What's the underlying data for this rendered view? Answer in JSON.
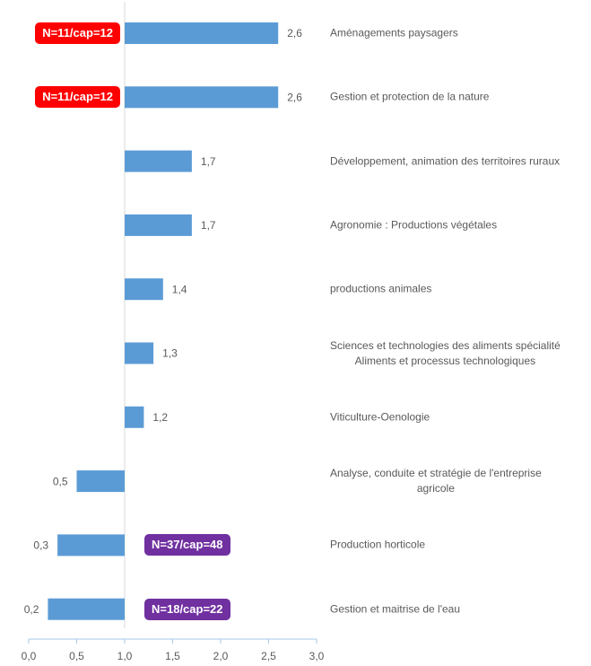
{
  "chart_data": {
    "type": "hbar",
    "categories": [
      "Aménagements paysagers",
      "Gestion et protection de la nature",
      "Développement, animation des territoires ruraux",
      "Agronomie : Productions végétales",
      "productions animales",
      "Sciences et technologies des aliments spécialité\nAliments et processus technologiques",
      "Viticulture-Oenologie",
      "Analyse, conduite et stratégie de l'entreprise\nagricole",
      "Production horticole",
      "Gestion et maitrise de l'eau"
    ],
    "values": [
      2.6,
      2.6,
      1.7,
      1.7,
      1.4,
      1.3,
      1.2,
      0.5,
      0.3,
      0.2
    ],
    "value_labels": [
      "2,6",
      "2,6",
      "1,7",
      "1,7",
      "1,4",
      "1,3",
      "1,2",
      "0,5",
      "0,3",
      "0,2"
    ],
    "color": "#5b9bd5",
    "bar_base": 1,
    "xlim": [
      0,
      3
    ],
    "xticks": [
      {
        "value": 0,
        "label": "0,0"
      },
      {
        "value": 0.5,
        "label": "0,5"
      },
      {
        "value": 1,
        "label": "1,0"
      },
      {
        "value": 1.5,
        "label": "1,5"
      },
      {
        "value": 2,
        "label": "2,0"
      },
      {
        "value": 2.5,
        "label": "2,5"
      },
      {
        "value": 3,
        "label": "3,0"
      }
    ],
    "annotations": [
      {
        "text": "N=11/cap=12",
        "color": "#ff0000",
        "category": 0
      },
      {
        "text": "N=11/cap=12",
        "color": "#ff0000",
        "category": 1
      },
      {
        "text": "N=37/cap=48",
        "color": "#7030a0",
        "category": 8
      },
      {
        "text": "N=18/cap=22",
        "color": "#7030a0",
        "category": 9
      }
    ]
  }
}
